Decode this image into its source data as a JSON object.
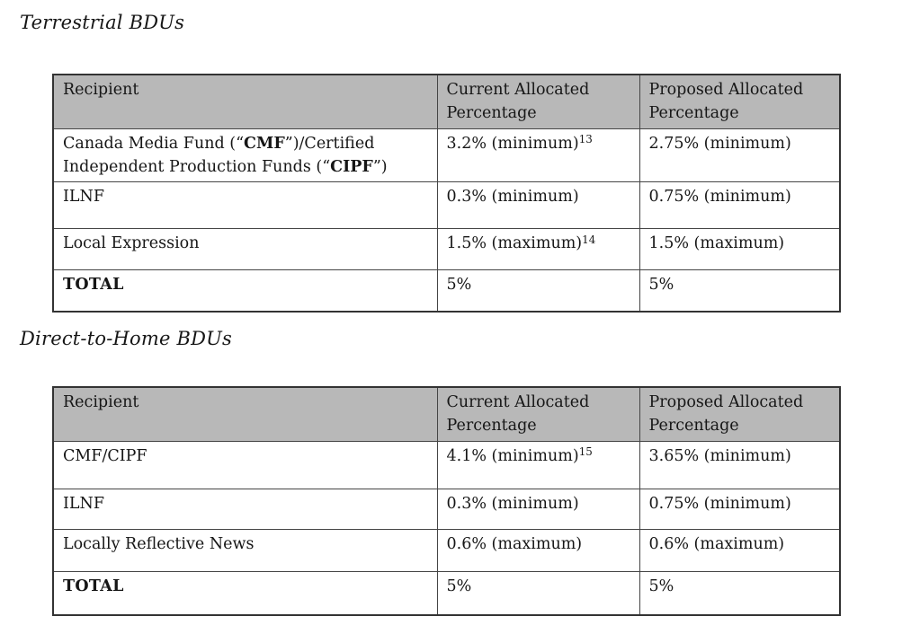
{
  "colors": {
    "header_bg": "#b8b8b8",
    "border": "#454545",
    "border_outer": "#333333",
    "text": "#161616",
    "page_bg": "#ffffff"
  },
  "headings": {
    "terrestrial": "Terrestrial BDUs",
    "dth": "Direct-to-Home BDUs"
  },
  "tables": [
    {
      "name": "Terrestrial BDUs",
      "headers": [
        "Recipient",
        "Current Allocated Percentage",
        "Proposed Allocated Percentage"
      ],
      "rows": [
        {
          "recipient": [
            "Canada Media Fund (“",
            "CMF",
            "”)/Certified Independent Production Funds (“",
            "CIPF",
            "”)"
          ],
          "current": "3.2% (minimum)",
          "current_sup": "13",
          "proposed": "2.75% (minimum)"
        },
        {
          "recipient": [
            "ILNF"
          ],
          "current": "0.3% (minimum)",
          "current_sup": "",
          "proposed": "0.75% (minimum)"
        },
        {
          "recipient": [
            "Local Expression"
          ],
          "current": "1.5% (maximum)",
          "current_sup": "14",
          "proposed": "1.5% (maximum)"
        },
        {
          "recipient": [
            "TOTAL"
          ],
          "current": "5%",
          "current_sup": "",
          "proposed": "5%"
        }
      ]
    },
    {
      "name": "Direct-to-Home BDUs",
      "headers": [
        "Recipient",
        "Current Allocated Percentage",
        "Proposed Allocated Percentage"
      ],
      "rows": [
        {
          "recipient": [
            "CMF/CIPF"
          ],
          "current": "4.1% (minimum)",
          "current_sup": "15",
          "proposed": "3.65% (minimum)"
        },
        {
          "recipient": [
            "ILNF"
          ],
          "current": "0.3% (minimum)",
          "current_sup": "",
          "proposed": "0.75% (minimum)"
        },
        {
          "recipient": [
            "Locally Reflective News"
          ],
          "current": "0.6% (maximum)",
          "current_sup": "",
          "proposed": "0.6% (maximum)"
        },
        {
          "recipient": [
            "TOTAL"
          ],
          "current": "5%",
          "current_sup": "",
          "proposed": "5%"
        }
      ]
    }
  ]
}
